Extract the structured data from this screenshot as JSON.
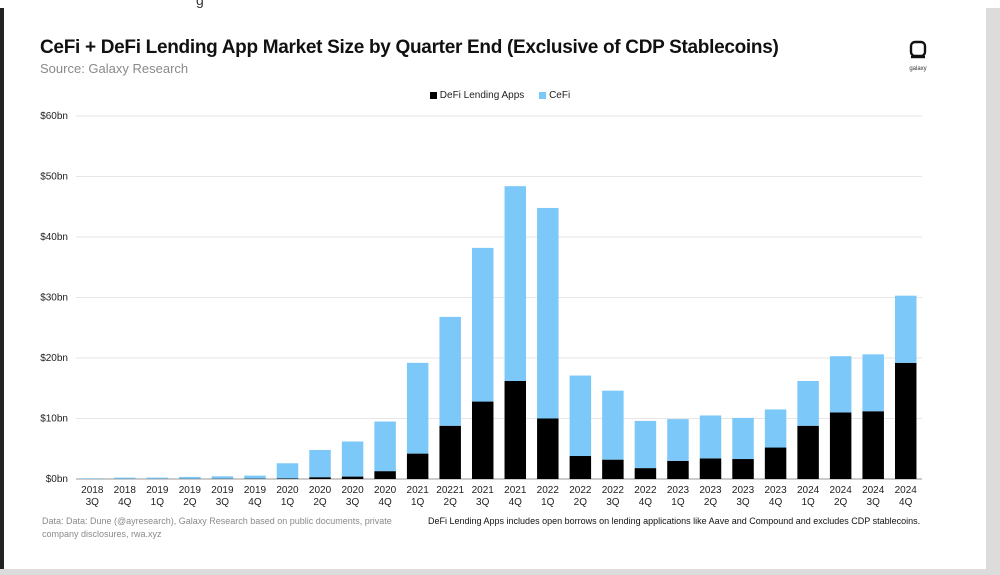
{
  "page": {
    "top_cut_text": "g ",
    "title": "CeFi + DeFi Lending App Market Size by Quarter End (Exclusive of CDP Stablecoins)",
    "subtitle": "Source: Galaxy Research",
    "logo_text": "galaxy",
    "footer_source": "Data: Data: Dune (@ayresearch), Galaxy Research based on public documents, private company disclosures, rwa.xyz",
    "footer_note": "DeFi Lending Apps includes open borrows on lending applications like Aave and Compound and excludes CDP stablecoins."
  },
  "colors": {
    "defi": "#000000",
    "cefi": "#7cc8f8",
    "grid": "#e6e6e6",
    "axis": "#999999"
  },
  "chart_data": {
    "type": "bar",
    "stacked": true,
    "categories": [
      [
        "2018",
        "3Q"
      ],
      [
        "2018",
        "4Q"
      ],
      [
        "2019",
        "1Q"
      ],
      [
        "2019",
        "2Q"
      ],
      [
        "2019",
        "3Q"
      ],
      [
        "2019",
        "4Q"
      ],
      [
        "2020",
        "1Q"
      ],
      [
        "2020",
        "2Q"
      ],
      [
        "2020",
        "3Q"
      ],
      [
        "2020",
        "4Q"
      ],
      [
        "2021",
        "1Q"
      ],
      [
        "20221",
        "2Q"
      ],
      [
        "2021",
        "3Q"
      ],
      [
        "2021",
        "4Q"
      ],
      [
        "2022",
        "1Q"
      ],
      [
        "2022",
        "2Q"
      ],
      [
        "2022",
        "3Q"
      ],
      [
        "2022",
        "4Q"
      ],
      [
        "2023",
        "1Q"
      ],
      [
        "2023",
        "2Q"
      ],
      [
        "2023",
        "3Q"
      ],
      [
        "2023",
        "4Q"
      ],
      [
        "2024",
        "1Q"
      ],
      [
        "2024",
        "2Q"
      ],
      [
        "2024",
        "3Q"
      ],
      [
        "2024",
        "4Q"
      ]
    ],
    "series": [
      {
        "name": "DeFi Lending Apps",
        "color_key": "defi",
        "values": [
          0.02,
          0.03,
          0.03,
          0.04,
          0.05,
          0.06,
          0.1,
          0.3,
          0.4,
          1.3,
          4.2,
          8.8,
          12.8,
          16.2,
          10.0,
          3.8,
          3.2,
          1.8,
          3.0,
          3.4,
          3.3,
          5.2,
          8.8,
          11.0,
          11.2,
          19.2
        ]
      },
      {
        "name": "CeFi",
        "color_key": "cefi",
        "values": [
          0.1,
          0.2,
          0.2,
          0.3,
          0.4,
          0.5,
          2.5,
          4.5,
          5.8,
          8.2,
          15.0,
          18.0,
          25.4,
          32.2,
          34.8,
          13.3,
          11.4,
          7.8,
          6.9,
          7.1,
          6.8,
          6.3,
          7.4,
          9.3,
          9.4,
          11.1
        ]
      }
    ],
    "yticks": [
      "$0bn",
      "$10bn",
      "$20bn",
      "$30bn",
      "$40bn",
      "$50bn",
      "$60bn"
    ],
    "ylim": [
      0,
      60
    ],
    "grid": true,
    "legend_position": "top-center"
  }
}
